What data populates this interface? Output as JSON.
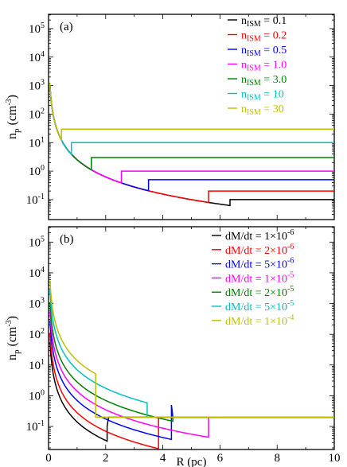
{
  "chart_data": [
    {
      "type": "line",
      "panel_label": "(a)",
      "ylabel": "n",
      "ylabel_sub": "p",
      "ylabel_unit": " (cm",
      "ylabel_exp": "-3",
      "ylabel_close": ")",
      "y_scale": "log",
      "xlim": [
        0,
        10
      ],
      "ylim_log10": [
        -1.7,
        5.5
      ],
      "legend_position": "top-right",
      "yticks": [
        {
          "exp": "-1",
          "log": -1
        },
        {
          "exp": "0",
          "log": 0
        },
        {
          "exp": "1",
          "log": 1
        },
        {
          "exp": "2",
          "log": 2
        },
        {
          "exp": "3",
          "log": 3
        },
        {
          "exp": "4",
          "log": 4
        },
        {
          "exp": "5",
          "log": 5
        }
      ],
      "series": [
        {
          "name_main": "n",
          "name_sub": "ISM",
          "name_value": " = 0.1",
          "color": "#000000",
          "n_ism": 0.1,
          "r_jump": 6.35,
          "r_end": 10
        },
        {
          "name_main": "n",
          "name_sub": "ISM",
          "name_value": " = 0.2",
          "color": "#ff0000",
          "n_ism": 0.2,
          "r_jump": 5.6,
          "r_end": 10
        },
        {
          "name_main": "n",
          "name_sub": "ISM",
          "name_value": " = 0.5",
          "color": "#0000ff",
          "n_ism": 0.5,
          "r_jump": 3.5,
          "r_end": 10
        },
        {
          "name_main": "n",
          "name_sub": "ISM",
          "name_value": " = 1.0",
          "color": "#ff00ff",
          "n_ism": 1.0,
          "r_jump": 2.55,
          "r_end": 10
        },
        {
          "name_main": "n",
          "name_sub": "ISM",
          "name_value": " = 3.0",
          "color": "#008000",
          "n_ism": 3.0,
          "r_jump": 1.5,
          "r_end": 10
        },
        {
          "name_main": "n",
          "name_sub": "ISM",
          "name_value": " = 10",
          "color": "#00bfbf",
          "n_ism": 10,
          "r_jump": 0.8,
          "r_end": 10
        },
        {
          "name_main": "n",
          "name_sub": "ISM",
          "name_value": " = 30",
          "color": "#bfbf00",
          "n_ism": 30,
          "r_jump": 0.45,
          "r_end": 10
        }
      ]
    },
    {
      "type": "line",
      "panel_label": "(b)",
      "xlabel": "R (pc)",
      "ylabel": "n",
      "ylabel_sub": "p",
      "ylabel_unit": " (cm",
      "ylabel_exp": "-3",
      "ylabel_close": ")",
      "y_scale": "log",
      "xlim": [
        0,
        10
      ],
      "ylim_log10": [
        -1.75,
        5.5
      ],
      "xticks": [
        0,
        2,
        4,
        6,
        8,
        10
      ],
      "legend_position": "top-right",
      "yticks": [
        {
          "exp": "-1",
          "log": -1
        },
        {
          "exp": "0",
          "log": 0
        },
        {
          "exp": "1",
          "log": 1
        },
        {
          "exp": "2",
          "log": 2
        },
        {
          "exp": "3",
          "log": 3
        },
        {
          "exp": "4",
          "log": 4
        },
        {
          "exp": "5",
          "log": 5
        }
      ],
      "series": [
        {
          "name_base": "dM/dt = 1×10",
          "name_exp": "-6",
          "color": "#000000",
          "rate_factor": 1,
          "r_jump": 2.05,
          "n_ism": 0.2,
          "post_jump_density": 0.1
        },
        {
          "name_base": "dM/dt = 2×10",
          "name_exp": "-6",
          "color": "#ff0000",
          "rate_factor": 2,
          "r_jump": 3.85,
          "n_ism": 0.2,
          "post_jump_density": 0.2
        },
        {
          "name_base": "dM/dt = 5×10",
          "name_exp": "-6",
          "color": "#0000ff",
          "rate_factor": 5,
          "r_jump": 4.3,
          "n_ism": 0.2,
          "post_jump_density": 0.5
        },
        {
          "name_base": "dM/dt = 1×10",
          "name_exp": "-5",
          "color": "#ff00ff",
          "rate_factor": 10,
          "r_jump": 5.6,
          "n_ism": 0.2,
          "post_jump_density": 0.2
        },
        {
          "name_base": "dM/dt = 2×10",
          "name_exp": "-5",
          "color": "#008000",
          "rate_factor": 20,
          "r_jump": 4.35,
          "n_ism": 0.2,
          "post_jump_density": 0.2
        },
        {
          "name_base": "dM/dt = 5×10",
          "name_exp": "-5",
          "color": "#00bfbf",
          "rate_factor": 50,
          "r_jump": 3.45,
          "n_ism": 0.2,
          "post_jump_density": 0.2
        },
        {
          "name_base": "dM/dt = 1×10",
          "name_exp": "-4",
          "color": "#bfbf00",
          "rate_factor": 100,
          "r_jump": 1.65,
          "n_ism": 0.2,
          "post_jump_density": 0.2
        }
      ]
    }
  ]
}
